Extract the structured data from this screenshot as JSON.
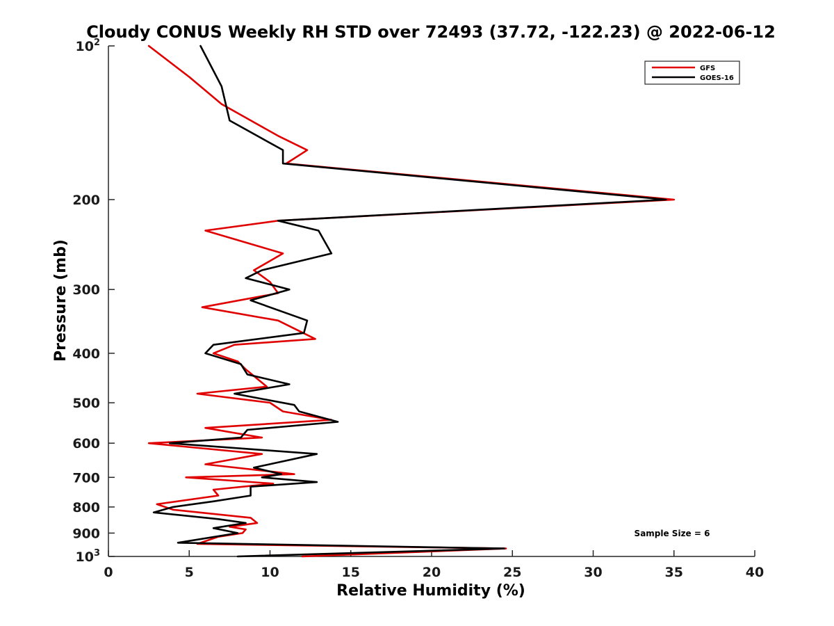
{
  "chart_data": {
    "type": "line",
    "title": "Cloudy CONUS Weekly RH STD over 72493 (37.72, -122.23) @ 2022-06-12",
    "xlabel": "Relative Humidity (%)",
    "ylabel": "Pressure (mb)",
    "xlim": [
      0,
      40
    ],
    "ylim": [
      100,
      1000
    ],
    "y_scale": "log",
    "y_reversed": true,
    "x_ticks": [
      "0",
      "5",
      "10",
      "15",
      "20",
      "25",
      "30",
      "35",
      "40"
    ],
    "y_ticks": [
      {
        "value": 100,
        "label": "10",
        "sup": "2"
      },
      {
        "value": 200,
        "label": "200",
        "sup": ""
      },
      {
        "value": 300,
        "label": "300",
        "sup": ""
      },
      {
        "value": 400,
        "label": "400",
        "sup": ""
      },
      {
        "value": 500,
        "label": "500",
        "sup": ""
      },
      {
        "value": 600,
        "label": "600",
        "sup": ""
      },
      {
        "value": 700,
        "label": "700",
        "sup": ""
      },
      {
        "value": 800,
        "label": "800",
        "sup": ""
      },
      {
        "value": 900,
        "label": "900",
        "sup": ""
      },
      {
        "value": 1000,
        "label": "10",
        "sup": "3"
      }
    ],
    "legend_position": "top-right",
    "grid": false,
    "annotation": "Sample Size = 6",
    "series": [
      {
        "name": "GFS",
        "color": "#e00000",
        "points": [
          [
            2.5,
            100
          ],
          [
            5,
            115
          ],
          [
            7,
            130
          ],
          [
            10.5,
            150
          ],
          [
            12.3,
            160
          ],
          [
            11,
            170
          ],
          [
            35,
            200
          ],
          [
            10.5,
            220
          ],
          [
            6,
            230
          ],
          [
            10.8,
            255
          ],
          [
            9,
            275
          ],
          [
            10,
            290
          ],
          [
            10.5,
            305
          ],
          [
            5.8,
            325
          ],
          [
            10.5,
            345
          ],
          [
            12.8,
            375
          ],
          [
            7.8,
            385
          ],
          [
            6.5,
            400
          ],
          [
            8,
            415
          ],
          [
            8.5,
            430
          ],
          [
            9.8,
            465
          ],
          [
            5.5,
            480
          ],
          [
            10,
            500
          ],
          [
            10.8,
            520
          ],
          [
            13.8,
            540
          ],
          [
            6,
            560
          ],
          [
            9.5,
            585
          ],
          [
            2.5,
            600
          ],
          [
            9.5,
            630
          ],
          [
            6,
            660
          ],
          [
            11.5,
            690
          ],
          [
            4.8,
            700
          ],
          [
            10.2,
            720
          ],
          [
            6.5,
            740
          ],
          [
            6.8,
            760
          ],
          [
            3,
            790
          ],
          [
            4,
            810
          ],
          [
            8.8,
            840
          ],
          [
            9.2,
            860
          ],
          [
            7.5,
            875
          ],
          [
            8.5,
            885
          ],
          [
            8.3,
            900
          ],
          [
            6.8,
            915
          ],
          [
            5.5,
            945
          ],
          [
            24.6,
            965
          ],
          [
            12,
            1000
          ]
        ]
      },
      {
        "name": "GOES-16",
        "color": "#000000",
        "points": [
          [
            5.7,
            100
          ],
          [
            7,
            120
          ],
          [
            7.5,
            140
          ],
          [
            10.8,
            160
          ],
          [
            10.8,
            170
          ],
          [
            34.5,
            200
          ],
          [
            10.5,
            220
          ],
          [
            13,
            230
          ],
          [
            13.8,
            255
          ],
          [
            9.5,
            275
          ],
          [
            8.5,
            285
          ],
          [
            11.2,
            300
          ],
          [
            8.8,
            315
          ],
          [
            12.3,
            345
          ],
          [
            12.1,
            365
          ],
          [
            6.5,
            385
          ],
          [
            6,
            400
          ],
          [
            8.2,
            420
          ],
          [
            8.6,
            440
          ],
          [
            11.2,
            460
          ],
          [
            7.8,
            480
          ],
          [
            11.5,
            505
          ],
          [
            11.8,
            520
          ],
          [
            14.2,
            545
          ],
          [
            8.6,
            565
          ],
          [
            8.2,
            585
          ],
          [
            3.8,
            600
          ],
          [
            12.9,
            630
          ],
          [
            9,
            670
          ],
          [
            10.7,
            690
          ],
          [
            9.5,
            700
          ],
          [
            12.9,
            715
          ],
          [
            8.8,
            730
          ],
          [
            8.8,
            760
          ],
          [
            6.5,
            780
          ],
          [
            4,
            800
          ],
          [
            2.8,
            820
          ],
          [
            6.8,
            845
          ],
          [
            8.5,
            860
          ],
          [
            6.5,
            880
          ],
          [
            8,
            900
          ],
          [
            4.3,
            940
          ],
          [
            24.5,
            965
          ],
          [
            8,
            1000
          ]
        ]
      }
    ]
  }
}
